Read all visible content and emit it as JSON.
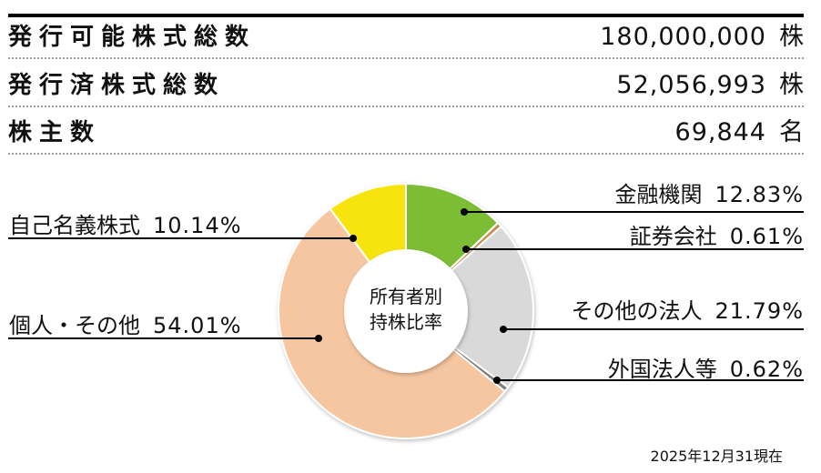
{
  "summary": {
    "rows": [
      {
        "label": "発行可能株式総数",
        "value": "180,000,000",
        "unit": "株"
      },
      {
        "label": "発行済株式総数",
        "value": "52,056,993",
        "unit": "株"
      },
      {
        "label": "株主数",
        "value": "69,844",
        "unit": "名"
      }
    ]
  },
  "chart": {
    "center_title_line1": "所有者別",
    "center_title_line2": "持株比率",
    "as_of": "2025年12月31現在",
    "labels": {
      "financial": {
        "name": "金融機関",
        "pct": "12.83%"
      },
      "securities": {
        "name": "証券会社",
        "pct": "0.61%"
      },
      "other_corp": {
        "name": "その他の法人",
        "pct": "21.79%"
      },
      "foreign": {
        "name": "外国法人等",
        "pct": "0.62%"
      },
      "individual": {
        "name": "個人・その他",
        "pct": "54.01%"
      },
      "treasury": {
        "name": "自己名義株式",
        "pct": "10.14%"
      }
    }
  },
  "chart_data": {
    "type": "pie",
    "subtype": "donut",
    "title": "所有者別持株比率",
    "categories": [
      "金融機関",
      "証券会社",
      "その他の法人",
      "外国法人等",
      "個人・その他",
      "自己名義株式"
    ],
    "values": [
      12.83,
      0.61,
      21.79,
      0.62,
      54.01,
      10.14
    ],
    "unit": "%",
    "colors": [
      "#7dbd36",
      "#c8915a",
      "#d9d9d9",
      "#7f7f7f",
      "#f6c6a0",
      "#f7e30a"
    ],
    "start_angle": "12 o'clock, clockwise",
    "annotation": "2025年12月31現在"
  }
}
